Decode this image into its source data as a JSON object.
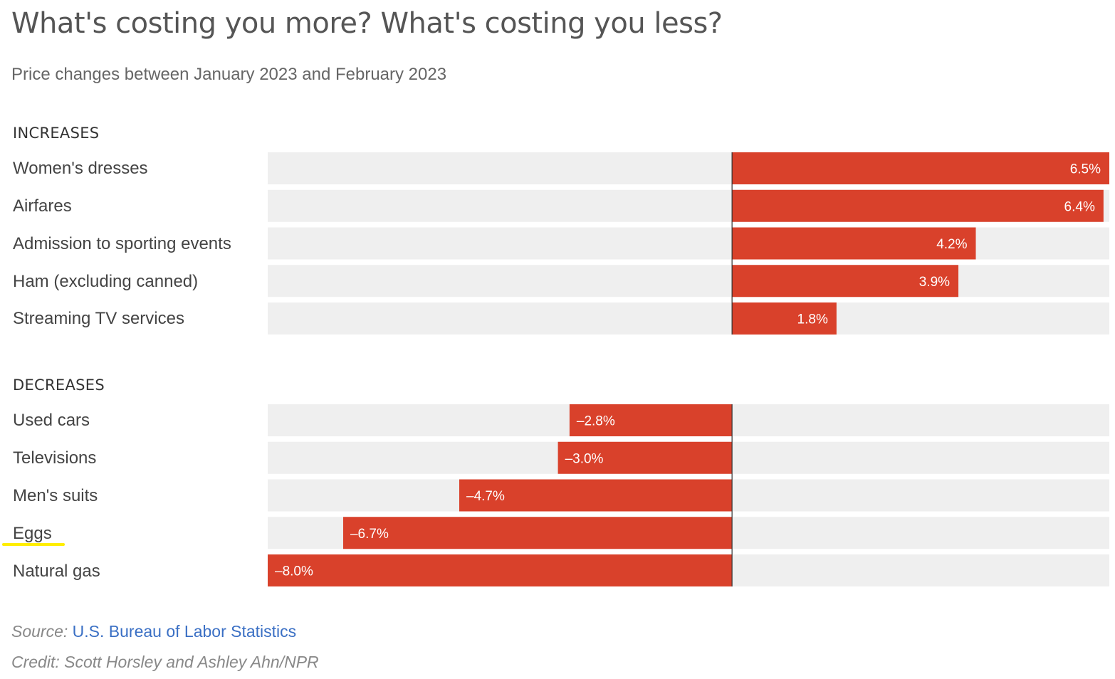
{
  "header": {
    "title": "What's costing you more? What's costing you less?",
    "subtitle": "Price changes between January 2023 and February 2023"
  },
  "sections": {
    "increases_title": "INCREASES",
    "decreases_title": "DECREASES"
  },
  "footer": {
    "source_prefix": "Source:",
    "source_link": "U.S. Bureau of Labor Statistics",
    "credit": "Credit: Scott Horsley and Ashley Ahn/NPR"
  },
  "colors": {
    "bar": "#d9412b",
    "track": "#efefef",
    "axis": "#333333",
    "highlight": "#ffee00"
  },
  "chart_data": {
    "type": "bar",
    "orientation": "horizontal",
    "xlim": [
      -8.0,
      6.5
    ],
    "groups": [
      {
        "name": "INCREASES",
        "categories": [
          "Women's dresses",
          "Airfares",
          "Admission to sporting events",
          "Ham (excluding canned)",
          "Streaming TV services"
        ],
        "values": [
          6.5,
          6.4,
          4.2,
          3.9,
          1.8
        ],
        "labels": [
          "6.5%",
          "6.4%",
          "4.2%",
          "3.9%",
          "1.8%"
        ]
      },
      {
        "name": "DECREASES",
        "categories": [
          "Used cars",
          "Televisions",
          "Men's suits",
          "Eggs",
          "Natural gas"
        ],
        "values": [
          -2.8,
          -3.0,
          -4.7,
          -6.7,
          -8.0
        ],
        "labels": [
          "–2.8%",
          "–3.0%",
          "–4.7%",
          "–6.7%",
          "–8.0%"
        ]
      }
    ]
  }
}
